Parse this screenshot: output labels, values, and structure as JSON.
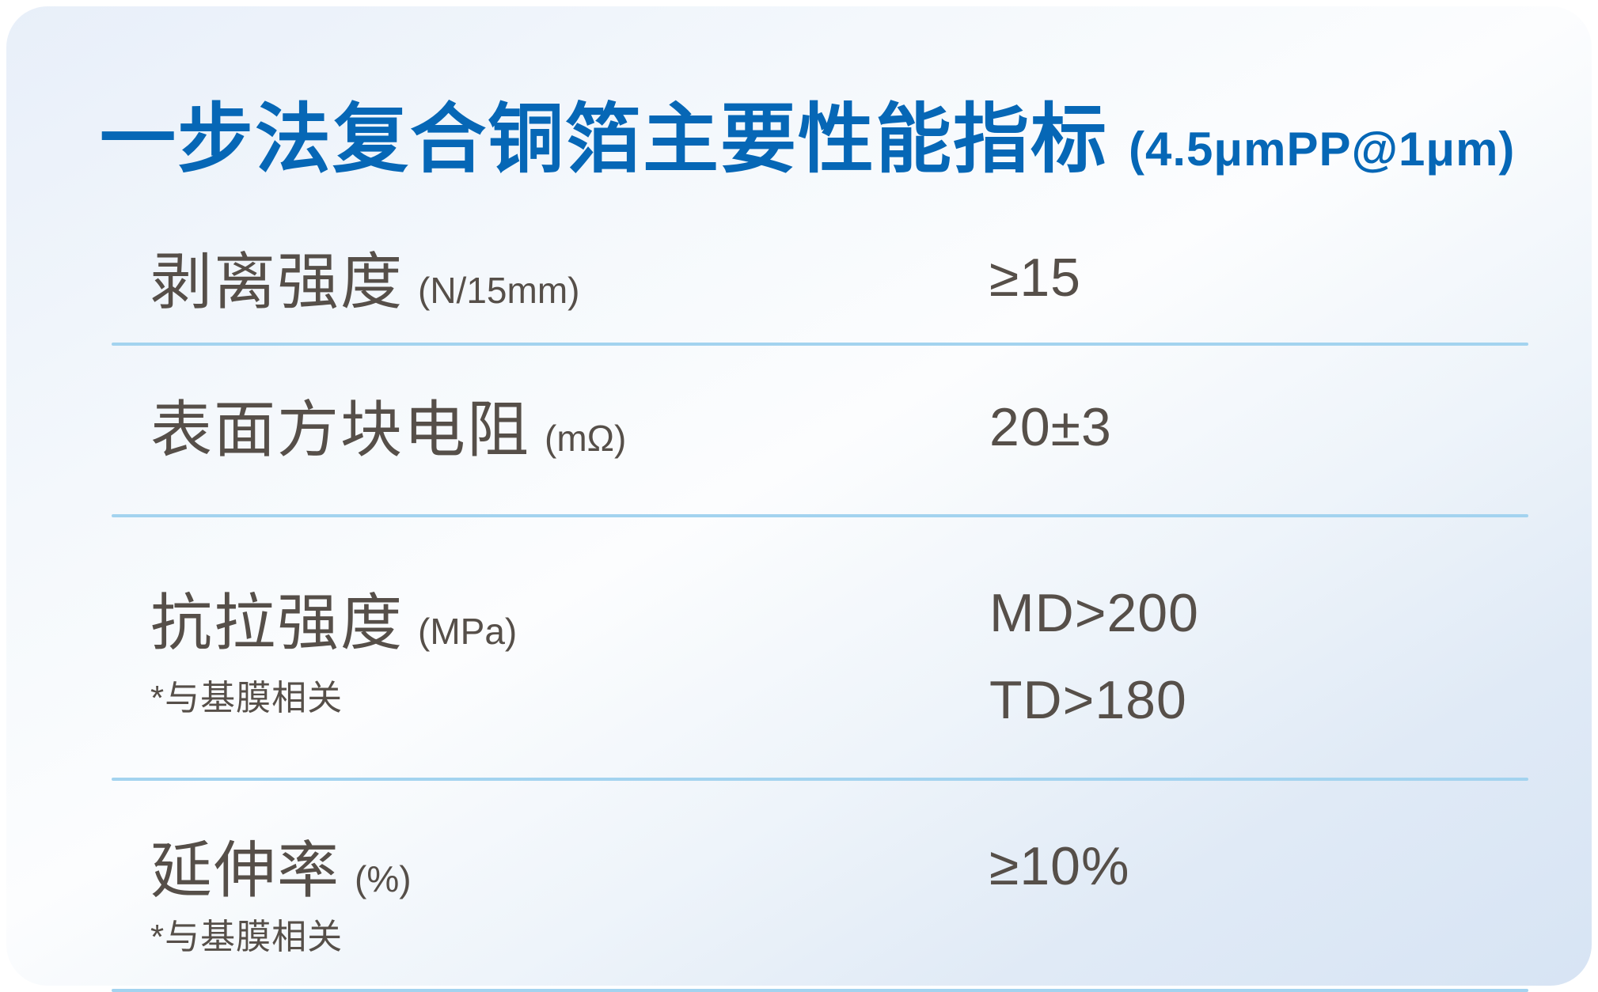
{
  "title": {
    "main": "一步法复合铜箔主要性能指标",
    "suffix": "(4.5μmPP@1μm)"
  },
  "colors": {
    "accent_blue": "#0667b6",
    "text": "#564f49",
    "divider_blue": "#a3d3ef",
    "card_gradient_start": "#e8eff9",
    "card_gradient_end": "#d7e4f4"
  },
  "table": {
    "rows": [
      {
        "label": "剥离强度",
        "unit": "(N/15mm)",
        "footnote": "",
        "values": [
          "≥15"
        ]
      },
      {
        "label": "表面方块电阻",
        "unit": "(mΩ)",
        "footnote": "",
        "values": [
          "20±3"
        ]
      },
      {
        "label": "抗拉强度",
        "unit": "(MPa)",
        "footnote": "*与基膜相关",
        "values": [
          "MD>200",
          "TD>180"
        ]
      },
      {
        "label": "延伸率",
        "unit": "(%)",
        "footnote": "*与基膜相关",
        "values": [
          "≥10%"
        ]
      }
    ]
  }
}
